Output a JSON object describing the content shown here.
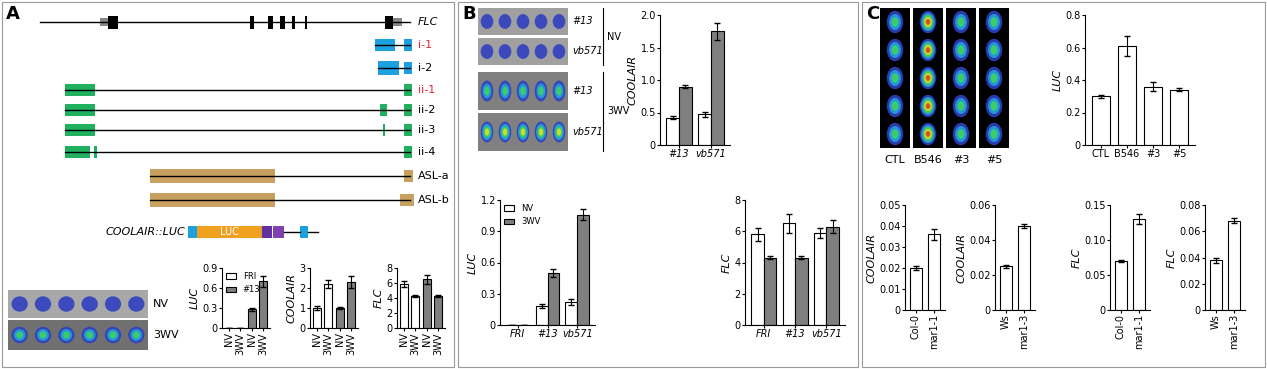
{
  "panel_labels": [
    "A",
    "B",
    "C"
  ],
  "gene_diagram": {
    "rows": [
      {
        "label": "FLC",
        "color": "#000000"
      },
      {
        "label": "i-1",
        "color": "#e8202a"
      },
      {
        "label": "i-2",
        "color": "#000000"
      },
      {
        "label": "ii-1",
        "color": "#e8202a"
      },
      {
        "label": "ii-2",
        "color": "#000000"
      },
      {
        "label": "ii-3",
        "color": "#000000"
      },
      {
        "label": "ii-4",
        "color": "#000000"
      },
      {
        "label": "ASL-a",
        "color": "#000000"
      },
      {
        "label": "ASL-b",
        "color": "#000000"
      }
    ],
    "construct": {
      "label": "COOLAIR::LUC",
      "gene": "LUC"
    }
  },
  "images": {
    "A": {
      "row_labels": [
        "NV",
        "3WV"
      ]
    },
    "B": {
      "row_labels": [
        "#13",
        "vb571",
        "#13",
        "vb571"
      ],
      "group_labels": [
        "NV",
        "3WV"
      ]
    },
    "C": {
      "labels": [
        "CTL",
        "B546",
        "#3",
        "#5"
      ]
    }
  },
  "chart_data": [
    {
      "type": "bar",
      "ylabel": "LUC",
      "categories": [
        "NV",
        "3WV",
        "NV",
        "3WV"
      ],
      "series": [
        {
          "name": "FRI",
          "color": "#ffffff",
          "values": [
            0,
            0,
            null,
            null
          ],
          "errors": [
            0,
            0,
            null,
            null
          ]
        },
        {
          "name": "#13",
          "color": "#7f7f7f",
          "values": [
            null,
            null,
            0.28,
            0.7
          ],
          "errors": [
            null,
            null,
            0.02,
            0.08
          ]
        }
      ],
      "ylim": [
        0,
        0.9
      ],
      "yticks": [
        0,
        0.3,
        0.6,
        0.9
      ],
      "legend": "upper left"
    },
    {
      "type": "bar",
      "ylabel": "COOLAIR",
      "categories": [
        "NV",
        "3WV",
        "NV",
        "3WV"
      ],
      "values": [
        1.0,
        2.2,
        1.0,
        2.3
      ],
      "errors": [
        0.08,
        0.2,
        0.05,
        0.3
      ],
      "colors": [
        "#ffffff",
        "#ffffff",
        "#7f7f7f",
        "#7f7f7f"
      ],
      "ylim": [
        0,
        3
      ],
      "yticks": [
        0,
        1,
        2,
        3
      ]
    },
    {
      "type": "bar",
      "ylabel": "FLC",
      "categories": [
        "NV",
        "3WV",
        "NV",
        "3WV"
      ],
      "values": [
        5.9,
        4.3,
        6.5,
        4.3
      ],
      "errors": [
        0.4,
        0.15,
        0.6,
        0.15
      ],
      "colors": [
        "#ffffff",
        "#ffffff",
        "#7f7f7f",
        "#7f7f7f"
      ],
      "ylim": [
        0,
        8
      ],
      "yticks": [
        0,
        2,
        4,
        6,
        8
      ]
    },
    {
      "type": "bar",
      "ylabel": "COOLAIR",
      "categories": [
        "#13",
        "vb571"
      ],
      "series": [
        {
          "color": "#ffffff",
          "values": [
            0.42,
            0.47
          ],
          "errors": [
            0.02,
            0.04
          ]
        },
        {
          "color": "#7f7f7f",
          "values": [
            0.9,
            1.75
          ],
          "errors": [
            0.02,
            0.13
          ]
        }
      ],
      "ylim": [
        0,
        2
      ],
      "yticks": [
        0,
        0.5,
        {
          "value": 1,
          "label": "1.0"
        },
        1.5,
        {
          "value": 2,
          "label": "2.0"
        }
      ]
    },
    {
      "type": "bar",
      "ylabel": "LUC",
      "categories": [
        "FRI",
        "#13",
        "vb571"
      ],
      "series": [
        {
          "name": "NV",
          "color": "#ffffff",
          "values": [
            0,
            0.18,
            0.22
          ],
          "errors": [
            0,
            0.02,
            0.03
          ]
        },
        {
          "name": "3WV",
          "color": "#7f7f7f",
          "values": [
            0,
            0.5,
            1.06
          ],
          "errors": [
            0,
            0.04,
            0.05
          ]
        }
      ],
      "ylim": [
        0,
        1.2
      ],
      "yticks": [
        0,
        0.3,
        0.6,
        0.9,
        1.2
      ],
      "legend": "upper left"
    },
    {
      "type": "bar",
      "ylabel": "FLC",
      "categories": [
        "FRI",
        "#13",
        "vb571"
      ],
      "series": [
        {
          "color": "#ffffff",
          "values": [
            5.8,
            6.5,
            5.9
          ],
          "errors": [
            0.4,
            0.6,
            0.3
          ]
        },
        {
          "color": "#7f7f7f",
          "values": [
            4.3,
            4.3,
            6.3
          ],
          "errors": [
            0.1,
            0.1,
            0.4
          ]
        }
      ],
      "ylim": [
        0,
        8
      ],
      "yticks": [
        0,
        2,
        4,
        6,
        8
      ]
    },
    {
      "type": "bar",
      "ylabel": "LUC",
      "categories": [
        "CTL",
        "B546",
        "#3",
        "#5"
      ],
      "values": [
        0.3,
        0.61,
        0.36,
        0.34
      ],
      "errors": [
        0.01,
        0.06,
        0.03,
        0.01
      ],
      "color": "#ffffff",
      "ylim": [
        0,
        0.8
      ],
      "yticks": [
        0,
        0.2,
        0.4,
        0.6,
        0.8
      ]
    },
    {
      "type": "bar",
      "ylabel": "COOLAIR",
      "categories": [
        "Col-0",
        "mar1-1"
      ],
      "values": [
        0.02,
        0.036
      ],
      "errors": [
        0.001,
        0.0025
      ],
      "color": "#ffffff",
      "ylim": [
        0,
        0.05
      ],
      "yticks": [
        0,
        0.01,
        0.02,
        0.03,
        0.04,
        0.05
      ]
    },
    {
      "type": "bar",
      "ylabel": "COOLAIR",
      "categories": [
        "Ws",
        "mar1-3"
      ],
      "values": [
        0.025,
        0.048
      ],
      "errors": [
        0.001,
        0.001
      ],
      "color": "#ffffff",
      "ylim": [
        0,
        0.06
      ],
      "yticks": [
        0,
        0.02,
        0.04,
        0.06
      ]
    },
    {
      "type": "bar",
      "ylabel": "FLC",
      "categories": [
        "Col-0",
        "mar1-1"
      ],
      "values": [
        0.07,
        0.13
      ],
      "errors": [
        0.002,
        0.007
      ],
      "color": "#ffffff",
      "ylim": [
        0,
        0.15
      ],
      "yticks": [
        0,
        0.05,
        {
          "value": 0.1,
          "label": "0.10"
        },
        0.15
      ]
    },
    {
      "type": "bar",
      "ylabel": "FLC",
      "categories": [
        "Ws",
        "mar1-3"
      ],
      "values": [
        0.038,
        0.068
      ],
      "errors": [
        0.002,
        0.002
      ],
      "color": "#ffffff",
      "ylim": [
        0,
        0.08
      ],
      "yticks": [
        0,
        0.02,
        0.04,
        0.06,
        0.08
      ]
    }
  ]
}
